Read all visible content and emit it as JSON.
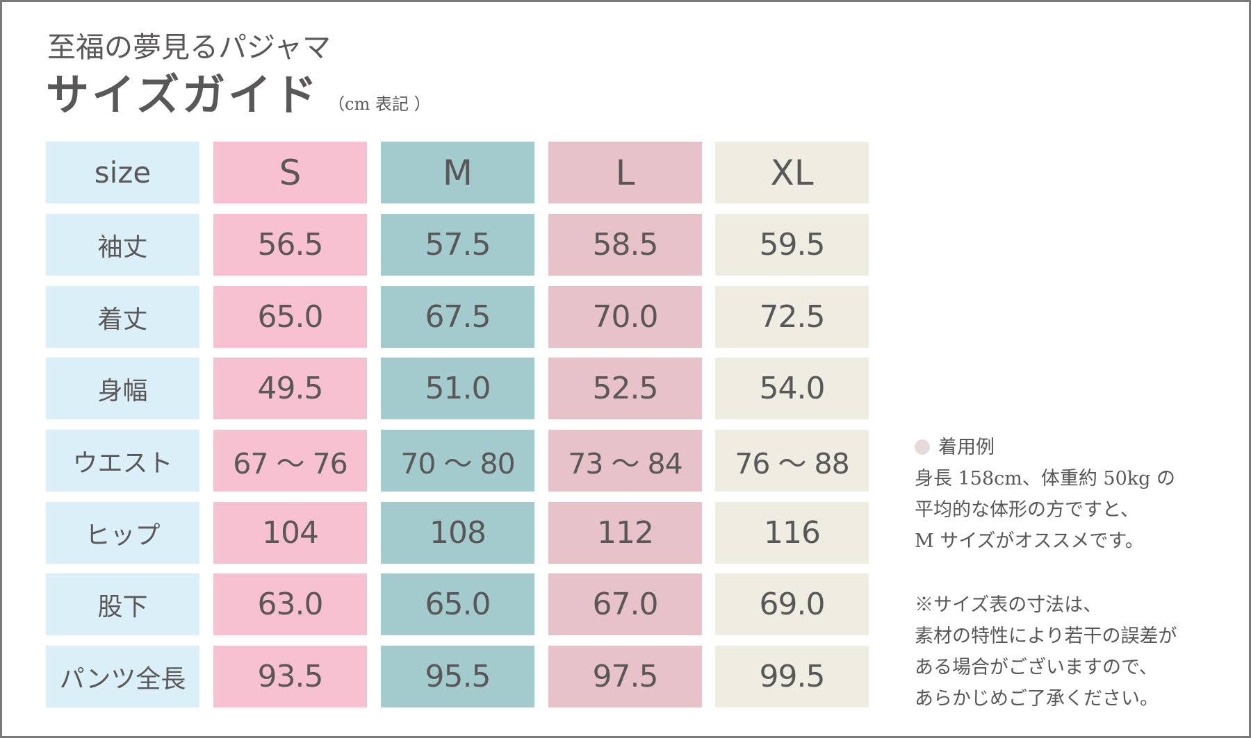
{
  "header": {
    "subtitle": "至福の夢見るパジャマ",
    "title": "サイズガイド",
    "unit_note": "（cm 表記 ）"
  },
  "colors": {
    "label_bg": "#daeff7",
    "S": "#f8c1d1",
    "M": "#a3cbce",
    "L": "#e7c3c9",
    "XL": "#efece2",
    "text": "#595757",
    "bullet": "#e6dadb"
  },
  "table": {
    "corner": "size",
    "sizes": [
      "S",
      "M",
      "L",
      "XL"
    ],
    "rows": [
      {
        "label": "袖丈",
        "values": [
          "56.5",
          "57.5",
          "58.5",
          "59.5"
        ]
      },
      {
        "label": "着丈",
        "values": [
          "65.0",
          "67.5",
          "70.0",
          "72.5"
        ]
      },
      {
        "label": "身幅",
        "values": [
          "49.5",
          "51.0",
          "52.5",
          "54.0"
        ]
      },
      {
        "label": "ウエスト",
        "values": [
          "67 ～ 76",
          "70 ～ 80",
          "73 ～ 84",
          "76 ～ 88"
        ]
      },
      {
        "label": "ヒップ",
        "values": [
          "104",
          "108",
          "112",
          "116"
        ]
      },
      {
        "label": "股下",
        "values": [
          "63.0",
          "65.0",
          "67.0",
          "69.0"
        ]
      },
      {
        "label": "パンツ全長",
        "values": [
          "93.5",
          "95.5",
          "97.5",
          "99.5"
        ]
      }
    ]
  },
  "notes": {
    "example_heading": "着用例",
    "example_lines": [
      "身長 158cm、体重約 50kg の",
      "平均的な体形の方ですと、",
      "M サイズがオススメです。"
    ],
    "disclaimer_lines": [
      "※サイズ表の寸法は、",
      "素材の特性により若干の誤差が",
      "ある場合がございますので、",
      "あらかじめご了承ください。"
    ]
  }
}
